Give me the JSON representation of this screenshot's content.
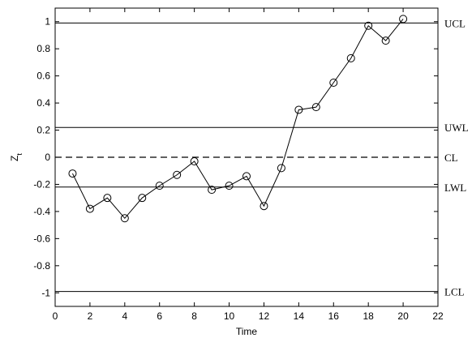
{
  "chart_data": {
    "type": "line",
    "title": "",
    "xlabel": "Time",
    "ylabel": "Z",
    "ylabel_subscript": "t",
    "xlim": [
      0,
      22
    ],
    "ylim": [
      -1.1,
      1.1
    ],
    "xticks": [
      0,
      2,
      4,
      6,
      8,
      10,
      12,
      14,
      16,
      18,
      20,
      22
    ],
    "yticks": [
      -1,
      -0.8,
      -0.6,
      -0.4,
      -0.2,
      0,
      0.2,
      0.4,
      0.6,
      0.8,
      1
    ],
    "grid": false,
    "marker": "circle-open",
    "series": [
      {
        "x": [
          1,
          2,
          3,
          4,
          5,
          6,
          7,
          8,
          9,
          10,
          11,
          12,
          13,
          14,
          15,
          16,
          17,
          18,
          19,
          20
        ],
        "values": [
          -0.12,
          -0.38,
          -0.3,
          -0.45,
          -0.3,
          -0.21,
          -0.13,
          -0.03,
          -0.24,
          -0.21,
          -0.14,
          -0.36,
          -0.08,
          0.35,
          0.37,
          0.55,
          0.73,
          0.97,
          0.86,
          1.02
        ]
      }
    ],
    "reference_lines": [
      {
        "label": "UCL",
        "y": 0.99,
        "style": "solid"
      },
      {
        "label": "UWL",
        "y": 0.22,
        "style": "solid"
      },
      {
        "label": "CL",
        "y": 0,
        "style": "dashed"
      },
      {
        "label": "LWL",
        "y": -0.22,
        "style": "solid"
      },
      {
        "label": "LCL",
        "y": -0.99,
        "style": "solid"
      }
    ]
  }
}
